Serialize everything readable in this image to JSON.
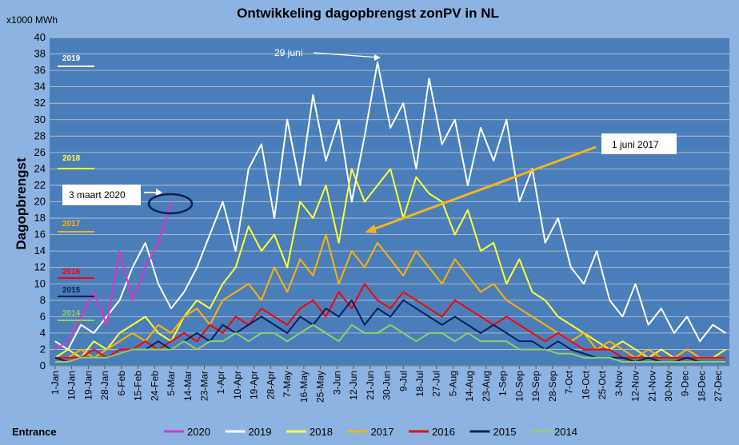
{
  "chart_data": {
    "type": "line",
    "title": "Ontwikkeling dagopbrengst zonPV in NL",
    "y_unit": "x1000 MWh",
    "y_label": "Dagopbrengst",
    "footer": "Entrance",
    "annotations": [
      "29 juni",
      "3 maart 2020",
      "1 juni 2017"
    ],
    "x": [
      1,
      8,
      15,
      22,
      29,
      36,
      43,
      50,
      57,
      64,
      71,
      78,
      85,
      92,
      99,
      106,
      113,
      120,
      127,
      134,
      141,
      148,
      155,
      162,
      169,
      176,
      183,
      190,
      197,
      204,
      211,
      218,
      225,
      232,
      239,
      246,
      253,
      260,
      267,
      274,
      281,
      288,
      295,
      302,
      309,
      316,
      323,
      330,
      337,
      344,
      351,
      358,
      365
    ],
    "xlim": [
      -2,
      367
    ],
    "xticks": [
      {
        "value": 1,
        "label": "1-Jan"
      },
      {
        "value": 10,
        "label": "10-Jan"
      },
      {
        "value": 19,
        "label": "19-Jan"
      },
      {
        "value": 28,
        "label": "28-Jan"
      },
      {
        "value": 37,
        "label": "6-Feb"
      },
      {
        "value": 46,
        "label": "15-Feb"
      },
      {
        "value": 55,
        "label": "24-Feb"
      },
      {
        "value": 64,
        "label": "5-Mar"
      },
      {
        "value": 73,
        "label": "14-Mar"
      },
      {
        "value": 82,
        "label": "23-Mar"
      },
      {
        "value": 91,
        "label": "1-Apr"
      },
      {
        "value": 100,
        "label": "10-Apr"
      },
      {
        "value": 109,
        "label": "19-Apr"
      },
      {
        "value": 118,
        "label": "28-Apr"
      },
      {
        "value": 127,
        "label": "7-May"
      },
      {
        "value": 136,
        "label": "16-May"
      },
      {
        "value": 145,
        "label": "25-May"
      },
      {
        "value": 154,
        "label": "3-Jun"
      },
      {
        "value": 163,
        "label": "12-Jun"
      },
      {
        "value": 172,
        "label": "21-Jun"
      },
      {
        "value": 181,
        "label": "30-Jun"
      },
      {
        "value": 190,
        "label": "9-Jul"
      },
      {
        "value": 199,
        "label": "18-Jul"
      },
      {
        "value": 208,
        "label": "27-Jul"
      },
      {
        "value": 217,
        "label": "5-Aug"
      },
      {
        "value": 226,
        "label": "14-Aug"
      },
      {
        "value": 235,
        "label": "23-Aug"
      },
      {
        "value": 244,
        "label": "1-Sep"
      },
      {
        "value": 253,
        "label": "10-Sep"
      },
      {
        "value": 262,
        "label": "19-Sep"
      },
      {
        "value": 271,
        "label": "28-Sep"
      },
      {
        "value": 280,
        "label": "7-Oct"
      },
      {
        "value": 289,
        "label": "16-Oct"
      },
      {
        "value": 298,
        "label": "25-Oct"
      },
      {
        "value": 307,
        "label": "3-Nov"
      },
      {
        "value": 316,
        "label": "12-Nov"
      },
      {
        "value": 325,
        "label": "21-Nov"
      },
      {
        "value": 334,
        "label": "30-Nov"
      },
      {
        "value": 343,
        "label": "9-Dec"
      },
      {
        "value": 352,
        "label": "18-Dec"
      },
      {
        "value": 361,
        "label": "27-Dec"
      }
    ],
    "ylim": [
      0,
      40
    ],
    "yticks": [
      0,
      2,
      4,
      6,
      8,
      10,
      12,
      14,
      16,
      18,
      20,
      22,
      24,
      26,
      28,
      30,
      32,
      34,
      36,
      38,
      40
    ],
    "grid": true,
    "legend": "bottom",
    "series": [
      {
        "name": "2020",
        "color": "#e033c8",
        "values": [
          2,
          3,
          6,
          9,
          5,
          14,
          8,
          12,
          15,
          20,
          null,
          null,
          null,
          null,
          null,
          null,
          null,
          null,
          null,
          null,
          null,
          null,
          null,
          null,
          null,
          null,
          null,
          null,
          null,
          null,
          null,
          null,
          null,
          null,
          null,
          null,
          null,
          null,
          null,
          null,
          null,
          null,
          null,
          null,
          null,
          null,
          null,
          null,
          null,
          null,
          null,
          null,
          null
        ]
      },
      {
        "name": "2019",
        "color": "#ffffff",
        "values": [
          3,
          2,
          5,
          4,
          6,
          8,
          12,
          15,
          10,
          7,
          9,
          12,
          16,
          20,
          14,
          24,
          27,
          18,
          30,
          22,
          33,
          25,
          30,
          20,
          28,
          37,
          29,
          32,
          24,
          35,
          27,
          30,
          22,
          29,
          25,
          30,
          20,
          24,
          15,
          18,
          12,
          10,
          14,
          8,
          6,
          10,
          5,
          7,
          4,
          6,
          3,
          5,
          4
        ]
      },
      {
        "name": "2018",
        "color": "#ffff33",
        "values": [
          1,
          2,
          1,
          3,
          2,
          4,
          5,
          6,
          4,
          3,
          6,
          8,
          7,
          10,
          12,
          17,
          14,
          16,
          12,
          20,
          18,
          22,
          15,
          24,
          20,
          22,
          24,
          18,
          23,
          21,
          20,
          16,
          19,
          14,
          15,
          10,
          13,
          9,
          8,
          6,
          5,
          4,
          3,
          2,
          3,
          2,
          1,
          2,
          1,
          2,
          1,
          1,
          2
        ]
      },
      {
        "name": "2017",
        "color": "#ffb300",
        "values": [
          1,
          1,
          2,
          1,
          2,
          3,
          4,
          3,
          5,
          4,
          6,
          7,
          5,
          8,
          9,
          10,
          8,
          12,
          9,
          13,
          11,
          16,
          10,
          14,
          12,
          15,
          13,
          11,
          14,
          12,
          10,
          13,
          11,
          9,
          10,
          8,
          7,
          6,
          5,
          4,
          3,
          4,
          2,
          3,
          2,
          1,
          2,
          1,
          1,
          2,
          1,
          1,
          1
        ]
      },
      {
        "name": "2016",
        "color": "#ff0000",
        "values": [
          1,
          1,
          1,
          2,
          1,
          2,
          2,
          3,
          2,
          3,
          4,
          3,
          5,
          4,
          6,
          5,
          7,
          6,
          5,
          7,
          8,
          6,
          9,
          7,
          10,
          8,
          7,
          9,
          8,
          7,
          6,
          8,
          7,
          6,
          5,
          6,
          5,
          4,
          3,
          4,
          3,
          2,
          2,
          2,
          1,
          1,
          1,
          1,
          1,
          1,
          1,
          1,
          1
        ]
      },
      {
        "name": "2015",
        "color": "#0a1f5c",
        "values": [
          1,
          0.5,
          1,
          1,
          1,
          1.5,
          2,
          2,
          3,
          2,
          3,
          4,
          3,
          5,
          4,
          5,
          6,
          5,
          4,
          6,
          5,
          7,
          6,
          8,
          5,
          7,
          6,
          8,
          7,
          6,
          5,
          6,
          5,
          4,
          5,
          4,
          3,
          3,
          2,
          3,
          2,
          1.5,
          1,
          1,
          1,
          0.5,
          1,
          0.5,
          0.5,
          1,
          0.5,
          0.5,
          0.5
        ]
      },
      {
        "name": "2014",
        "color": "#8fd16a",
        "values": [
          0.5,
          0.5,
          1,
          1,
          1,
          1.5,
          2,
          2,
          2,
          2,
          3,
          2,
          3,
          3,
          4,
          3,
          4,
          4,
          3,
          4,
          5,
          4,
          3,
          5,
          4,
          4,
          5,
          4,
          3,
          4,
          4,
          3,
          4,
          3,
          3,
          3,
          2,
          2,
          2,
          1.5,
          1.5,
          1,
          1,
          1,
          0.5,
          0.5,
          0.5,
          0.5,
          0.5,
          0.5,
          0.5,
          0.5,
          0.5
        ]
      }
    ]
  }
}
